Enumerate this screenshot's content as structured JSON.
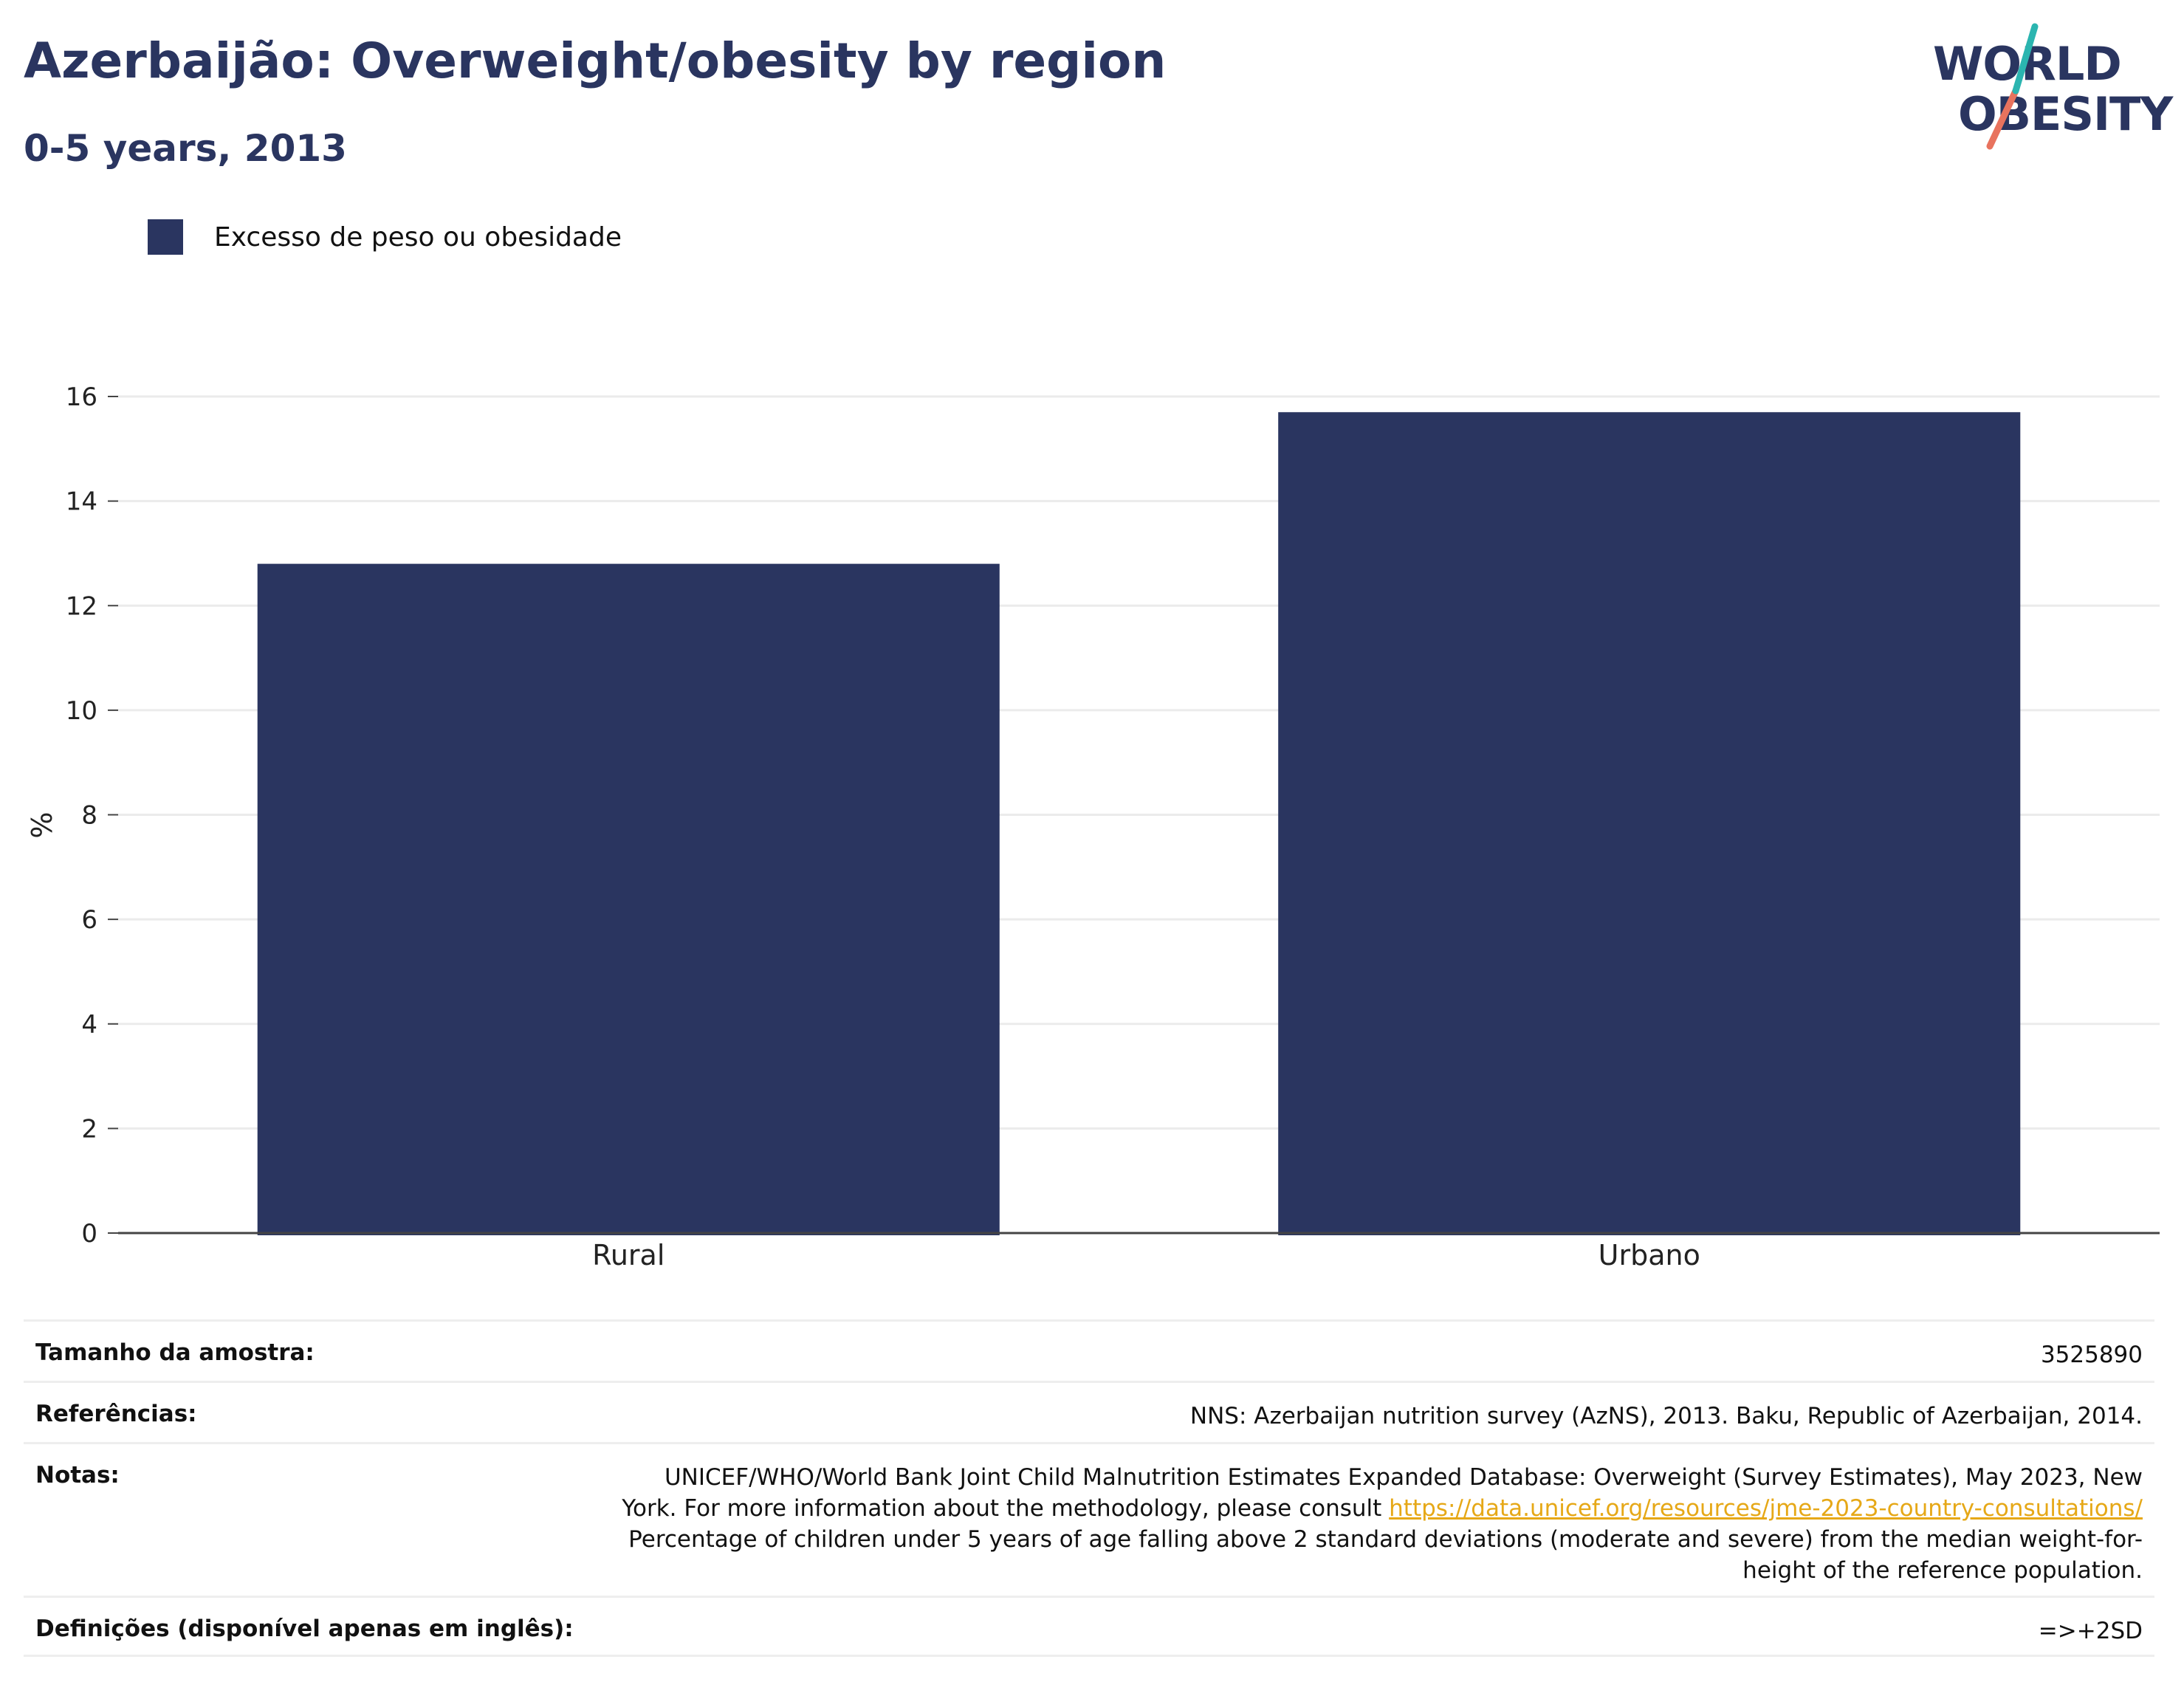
{
  "header": {
    "title": "Azerbaijão: Overweight/obesity by region",
    "subtitle": "0-5 years, 2013"
  },
  "logo": {
    "line1": "WORLD",
    "line2": "OBESITY",
    "text_color": "#2a3560",
    "slash_colors": [
      "#2bb5b0",
      "#e8735e"
    ]
  },
  "legend": {
    "label": "Excesso de peso ou obesidade",
    "color": "#2a3560"
  },
  "chart_data": {
    "type": "bar",
    "categories": [
      "Rural",
      "Urbano"
    ],
    "series": [
      {
        "name": "Excesso de peso ou obesidade",
        "values": [
          12.8,
          15.7
        ],
        "color": "#2a3560"
      }
    ],
    "ylabel": "%",
    "xlabel": "",
    "ylim": [
      0,
      16
    ],
    "yticks": [
      0,
      2,
      4,
      6,
      8,
      10,
      12,
      14,
      16
    ],
    "grid": true,
    "legend_position": "top-left"
  },
  "info": {
    "sample_size": {
      "label": "Tamanho da amostra:",
      "value": "3525890"
    },
    "references": {
      "label": "Referências:",
      "value": "NNS: Azerbaijan nutrition survey (AzNS), 2013. Baku, Republic of Azerbaijan, 2014."
    },
    "notes": {
      "label": "Notas:",
      "text_before": "UNICEF/WHO/World Bank Joint Child Malnutrition Estimates Expanded Database: Overweight (Survey Estimates), May 2023, New York. For more information about the methodology, please consult ",
      "link": "https://data.unicef.org/resources/jme-2023-country-consultations/",
      "text_after": " Percentage of children under 5 years of age falling above 2 standard deviations (moderate and severe) from the median weight-for-height of the reference population."
    },
    "definitions": {
      "label": "Definições (disponível apenas em inglês):",
      "value": "=>+2SD"
    }
  }
}
